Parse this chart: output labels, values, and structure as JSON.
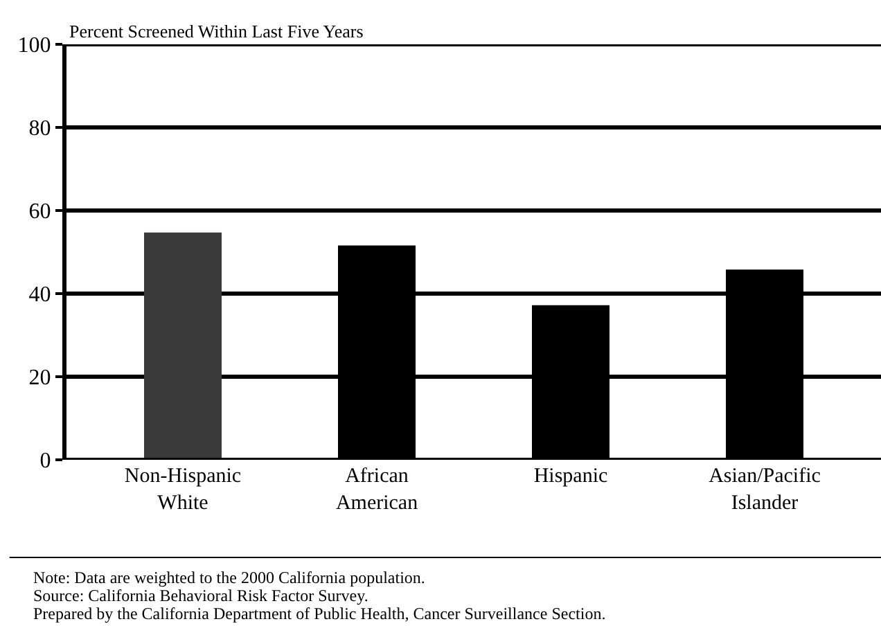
{
  "chart_data": {
    "type": "bar",
    "ylabel": "Percent Screened Within Last Five Years",
    "categories": [
      "Non-Hispanic White",
      "African American",
      "Hispanic",
      "Asian/Pacific Islander"
    ],
    "values": [
      54.7,
      51.6,
      37.2,
      45.8
    ],
    "colors": [
      "#3a3a3a",
      "#000000",
      "#000000",
      "#000000"
    ],
    "ylim": [
      0,
      100
    ],
    "yticks": [
      0,
      20,
      40,
      60,
      80,
      100
    ],
    "grid": "y",
    "annotations": [
      "Note: Data are weighted to the 2000 California population.",
      "Source: California Behavioral Risk Factor Survey.",
      "Prepared by the California Department of Public Health, Cancer Surveillance Section."
    ]
  }
}
